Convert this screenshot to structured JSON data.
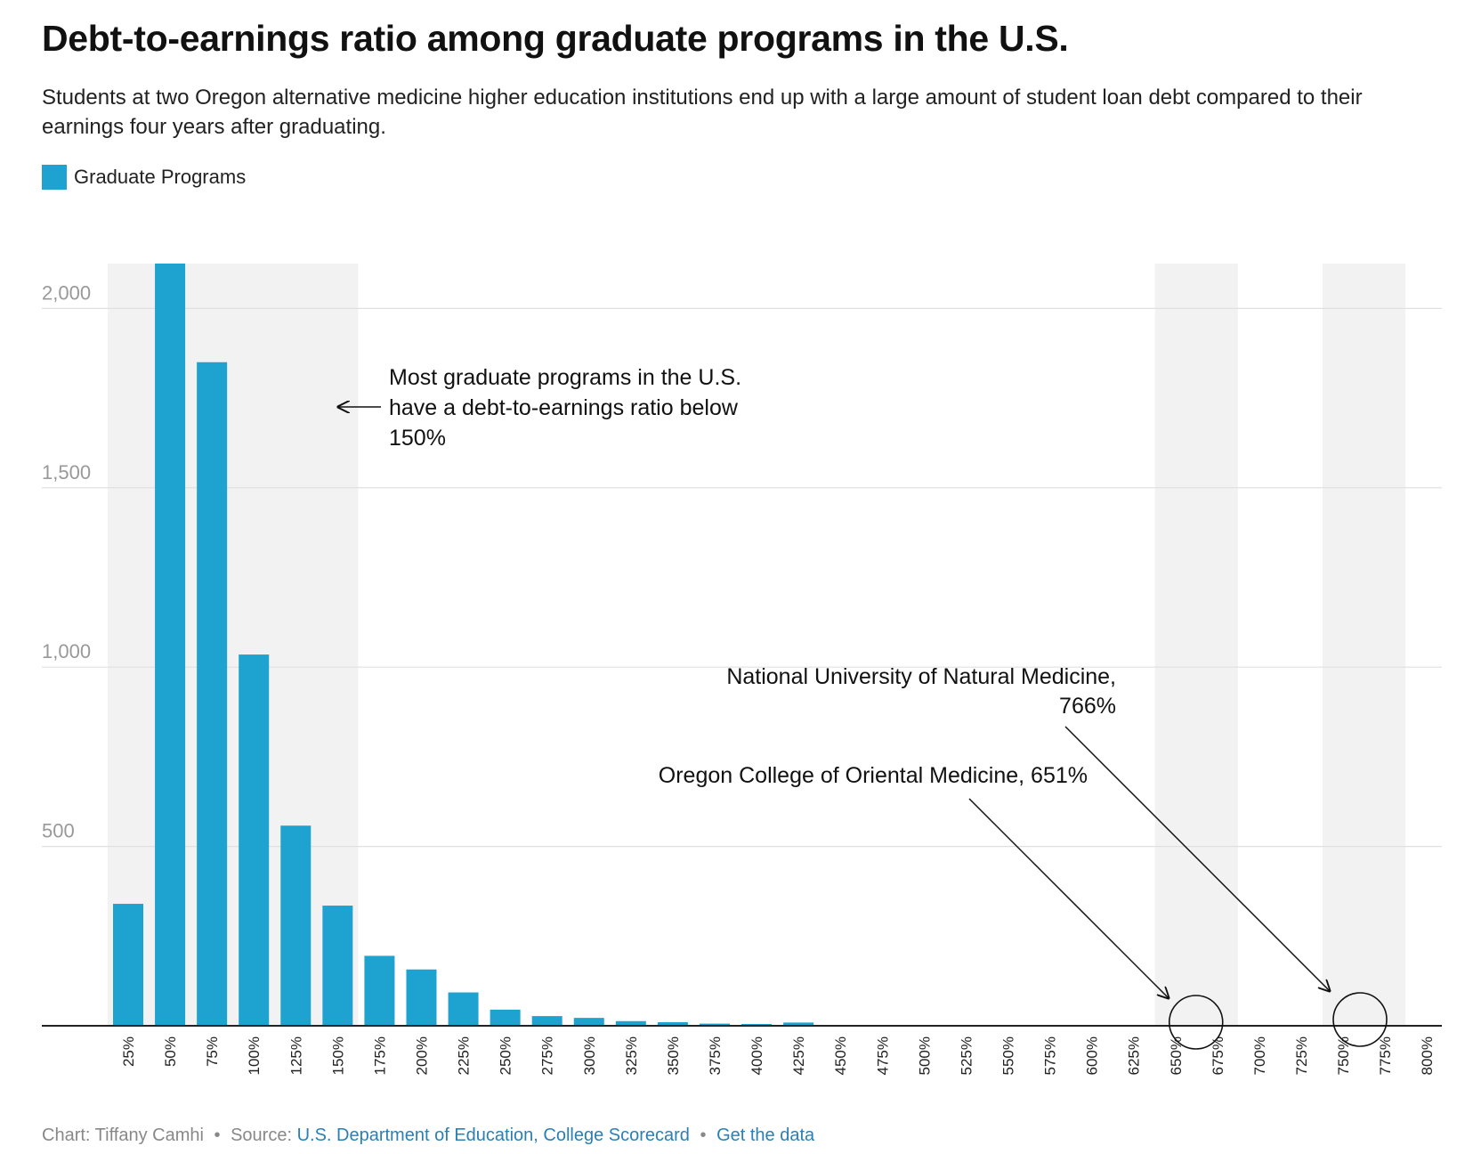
{
  "title": "Debt-to-earnings ratio among graduate programs in the U.S.",
  "subtitle": "Students at two Oregon alternative medicine higher education institutions end up with a large amount of student loan debt compared to their earnings four years after graduating.",
  "colors": {
    "bar": "#1ea3d0",
    "band": "#f2f2f2",
    "grid": "#e0e0e0",
    "axis": "#222222",
    "tick_text": "#999999",
    "link": "#2a7fb4"
  },
  "chart_data": {
    "type": "bar",
    "series": [
      {
        "name": "Graduate Programs"
      }
    ],
    "categories": [
      "25%",
      "50%",
      "75%",
      "100%",
      "125%",
      "150%",
      "175%",
      "200%",
      "225%",
      "250%",
      "275%",
      "300%",
      "325%",
      "350%",
      "375%",
      "400%",
      "425%",
      "450%",
      "475%",
      "500%",
      "525%",
      "550%",
      "575%",
      "600%",
      "625%",
      "650%",
      "675%",
      "700%",
      "725%",
      "750%",
      "775%",
      "800%"
    ],
    "values": [
      340,
      2125,
      1850,
      1035,
      558,
      335,
      195,
      157,
      93,
      45,
      27,
      22,
      13,
      10,
      6,
      5,
      9,
      0,
      0,
      0,
      0,
      0,
      0,
      0,
      0,
      0,
      0,
      0,
      0,
      0,
      0,
      0
    ],
    "ylim": [
      0,
      2125
    ],
    "yticks": [
      {
        "value": 500,
        "label": "500"
      },
      {
        "value": 1000,
        "label": "1,000"
      },
      {
        "value": 1500,
        "label": "1,500"
      },
      {
        "value": 2000,
        "label": "2,000"
      }
    ],
    "grid": true,
    "legend": "top-left",
    "highlight_bands": [
      {
        "from": "25%",
        "to": "150%"
      },
      {
        "from": "650%",
        "to": "675%"
      },
      {
        "from": "750%",
        "to": "775%"
      }
    ],
    "annotations": [
      {
        "lines": [
          "Most graduate programs in the U.S.",
          "have a debt-to-earnings ratio below",
          "150%"
        ]
      },
      {
        "lines": [
          "National University of Natural Medicine,",
          "766%"
        ],
        "value": 766
      },
      {
        "lines": [
          "Oregon College of Oriental Medicine, 651%"
        ],
        "value": 651
      }
    ]
  },
  "footer": {
    "chart_by": "Chart: Tiffany Camhi",
    "bullet": "•",
    "source_label": "Source:",
    "source_link": "U.S. Department of Education, College Scorecard",
    "data_link": "Get the data"
  }
}
